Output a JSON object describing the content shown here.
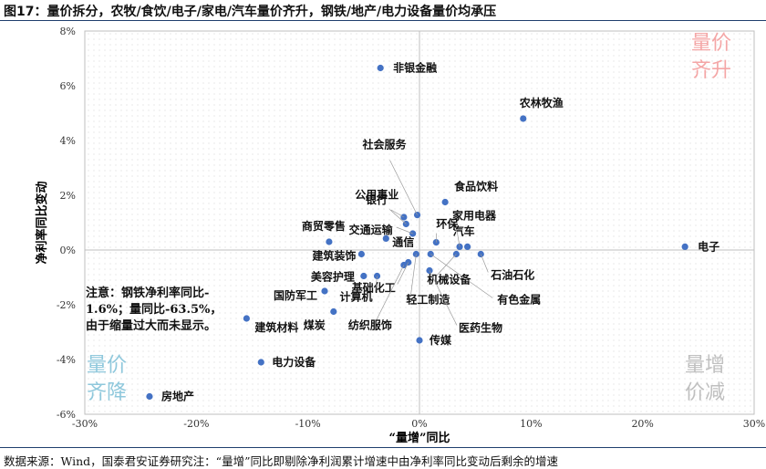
{
  "page_title": "图17：量价拆分，农牧/食饮/电子/家电/汽车量价齐升，钢铁/地产/电力设备量价均承压",
  "source": "数据来源：Wind，国泰君安证券研究注：“量增”同比即剔除净利润累计增速中由净利率同比变动后剩余的增速",
  "chart_data": {
    "type": "scatter",
    "title": "",
    "xlabel": "“量增”同比",
    "ylabel": "净利率同比变动",
    "xlim": [
      -30,
      30
    ],
    "ylim": [
      -6,
      8
    ],
    "x_ticks": [
      "-30%",
      "-20%",
      "-10%",
      "0%",
      "10%",
      "20%",
      "30%"
    ],
    "y_ticks": [
      "-6%",
      "-4%",
      "-2%",
      "0%",
      "2%",
      "4%",
      "6%",
      "8%"
    ],
    "grid": "dotted",
    "point_color": "#4472c4",
    "quadrant_labels": [
      {
        "lines": [
          "量价",
          "齐升"
        ],
        "position": "top-right",
        "color": "#f4a6a6"
      },
      {
        "lines": [
          "量价",
          "齐降"
        ],
        "position": "bottom-left",
        "color": "#8fc8dc"
      },
      {
        "lines": [
          "量增",
          "价减"
        ],
        "position": "bottom-right",
        "color": "#bfbfbf"
      }
    ],
    "note_lines": [
      "注意：钢铁净利率同比-",
      "1.6%；量同比-63.5%，",
      "由于缩量过大而未显示。"
    ],
    "points": [
      {
        "name": "非银金融",
        "x": -3.5,
        "y": 6.65
      },
      {
        "name": "农林牧渔",
        "x": 9.3,
        "y": 4.8
      },
      {
        "name": "社会服务",
        "x": -0.2,
        "y": 1.28
      },
      {
        "name": "食品饮料",
        "x": 2.3,
        "y": 1.75
      },
      {
        "name": "公用事业",
        "x": -1.2,
        "y": 0.95
      },
      {
        "name": "银行",
        "x": -1.4,
        "y": 1.2
      },
      {
        "name": "交通运输",
        "x": -0.6,
        "y": 0.6
      },
      {
        "name": "商贸零售",
        "x": -8.1,
        "y": 0.3
      },
      {
        "name": "环保",
        "x": 1.5,
        "y": 0.28
      },
      {
        "name": "家用电器",
        "x": 3.6,
        "y": 0.12
      },
      {
        "name": "通信",
        "x": -3.0,
        "y": 0.42
      },
      {
        "name": "汽车",
        "x": 4.3,
        "y": 0.12
      },
      {
        "name": "电子",
        "x": 23.8,
        "y": 0.12
      },
      {
        "name": "建筑装饰",
        "x": -5.2,
        "y": -0.15
      },
      {
        "name": "石油石化",
        "x": 5.5,
        "y": -0.15
      },
      {
        "name": "机械设备",
        "x": 3.3,
        "y": -0.15
      },
      {
        "name": "有色金属",
        "x": 1.0,
        "y": -0.15
      },
      {
        "name": "美容护理",
        "x": -5.0,
        "y": -0.95
      },
      {
        "name": "基础化工",
        "x": -1.0,
        "y": -0.45
      },
      {
        "name": "轻工制造",
        "x": -0.3,
        "y": -0.15
      },
      {
        "name": "医药生物",
        "x": 0.9,
        "y": -0.75
      },
      {
        "name": "国防军工",
        "x": -8.5,
        "y": -1.5
      },
      {
        "name": "计算机",
        "x": -3.8,
        "y": -0.95
      },
      {
        "name": "建筑材料",
        "x": -15.5,
        "y": -2.5
      },
      {
        "name": "煤炭",
        "x": -7.7,
        "y": -2.25
      },
      {
        "name": "纺织服饰",
        "x": -1.4,
        "y": -0.55
      },
      {
        "name": "传媒",
        "x": 0.0,
        "y": -3.3
      },
      {
        "name": "电力设备",
        "x": -14.2,
        "y": -4.1
      },
      {
        "name": "房地产",
        "x": -24.2,
        "y": -5.35
      }
    ]
  }
}
